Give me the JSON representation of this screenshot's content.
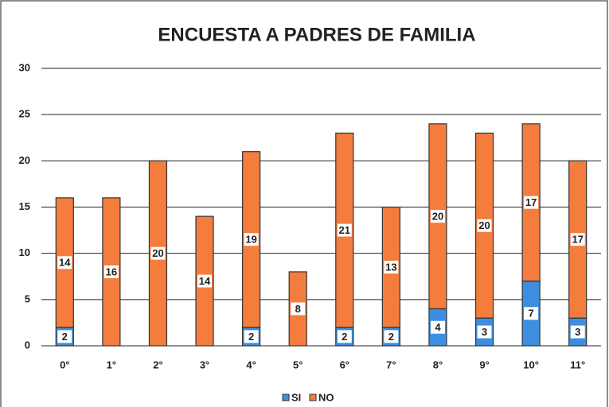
{
  "chart_data": {
    "type": "stacked_bar",
    "title": "ENCUESTA A PADRES DE FAMILIA",
    "categories": [
      "0°",
      "1°",
      "2°",
      "3°",
      "4°",
      "5°",
      "6°",
      "7°",
      "8°",
      "9°",
      "10°",
      "11°"
    ],
    "series": [
      {
        "name": "SI",
        "color": "#3d8ee0",
        "values": [
          2,
          0,
          0,
          0,
          2,
          0,
          2,
          2,
          4,
          3,
          7,
          3
        ]
      },
      {
        "name": "NO",
        "color": "#f47c3c",
        "values": [
          14,
          16,
          20,
          14,
          19,
          8,
          21,
          13,
          20,
          20,
          17,
          17
        ]
      }
    ],
    "ylim": [
      0,
      30
    ],
    "yticks": [
      0,
      5,
      10,
      15,
      20,
      25,
      30
    ],
    "grid": true,
    "legend": "bottom"
  }
}
